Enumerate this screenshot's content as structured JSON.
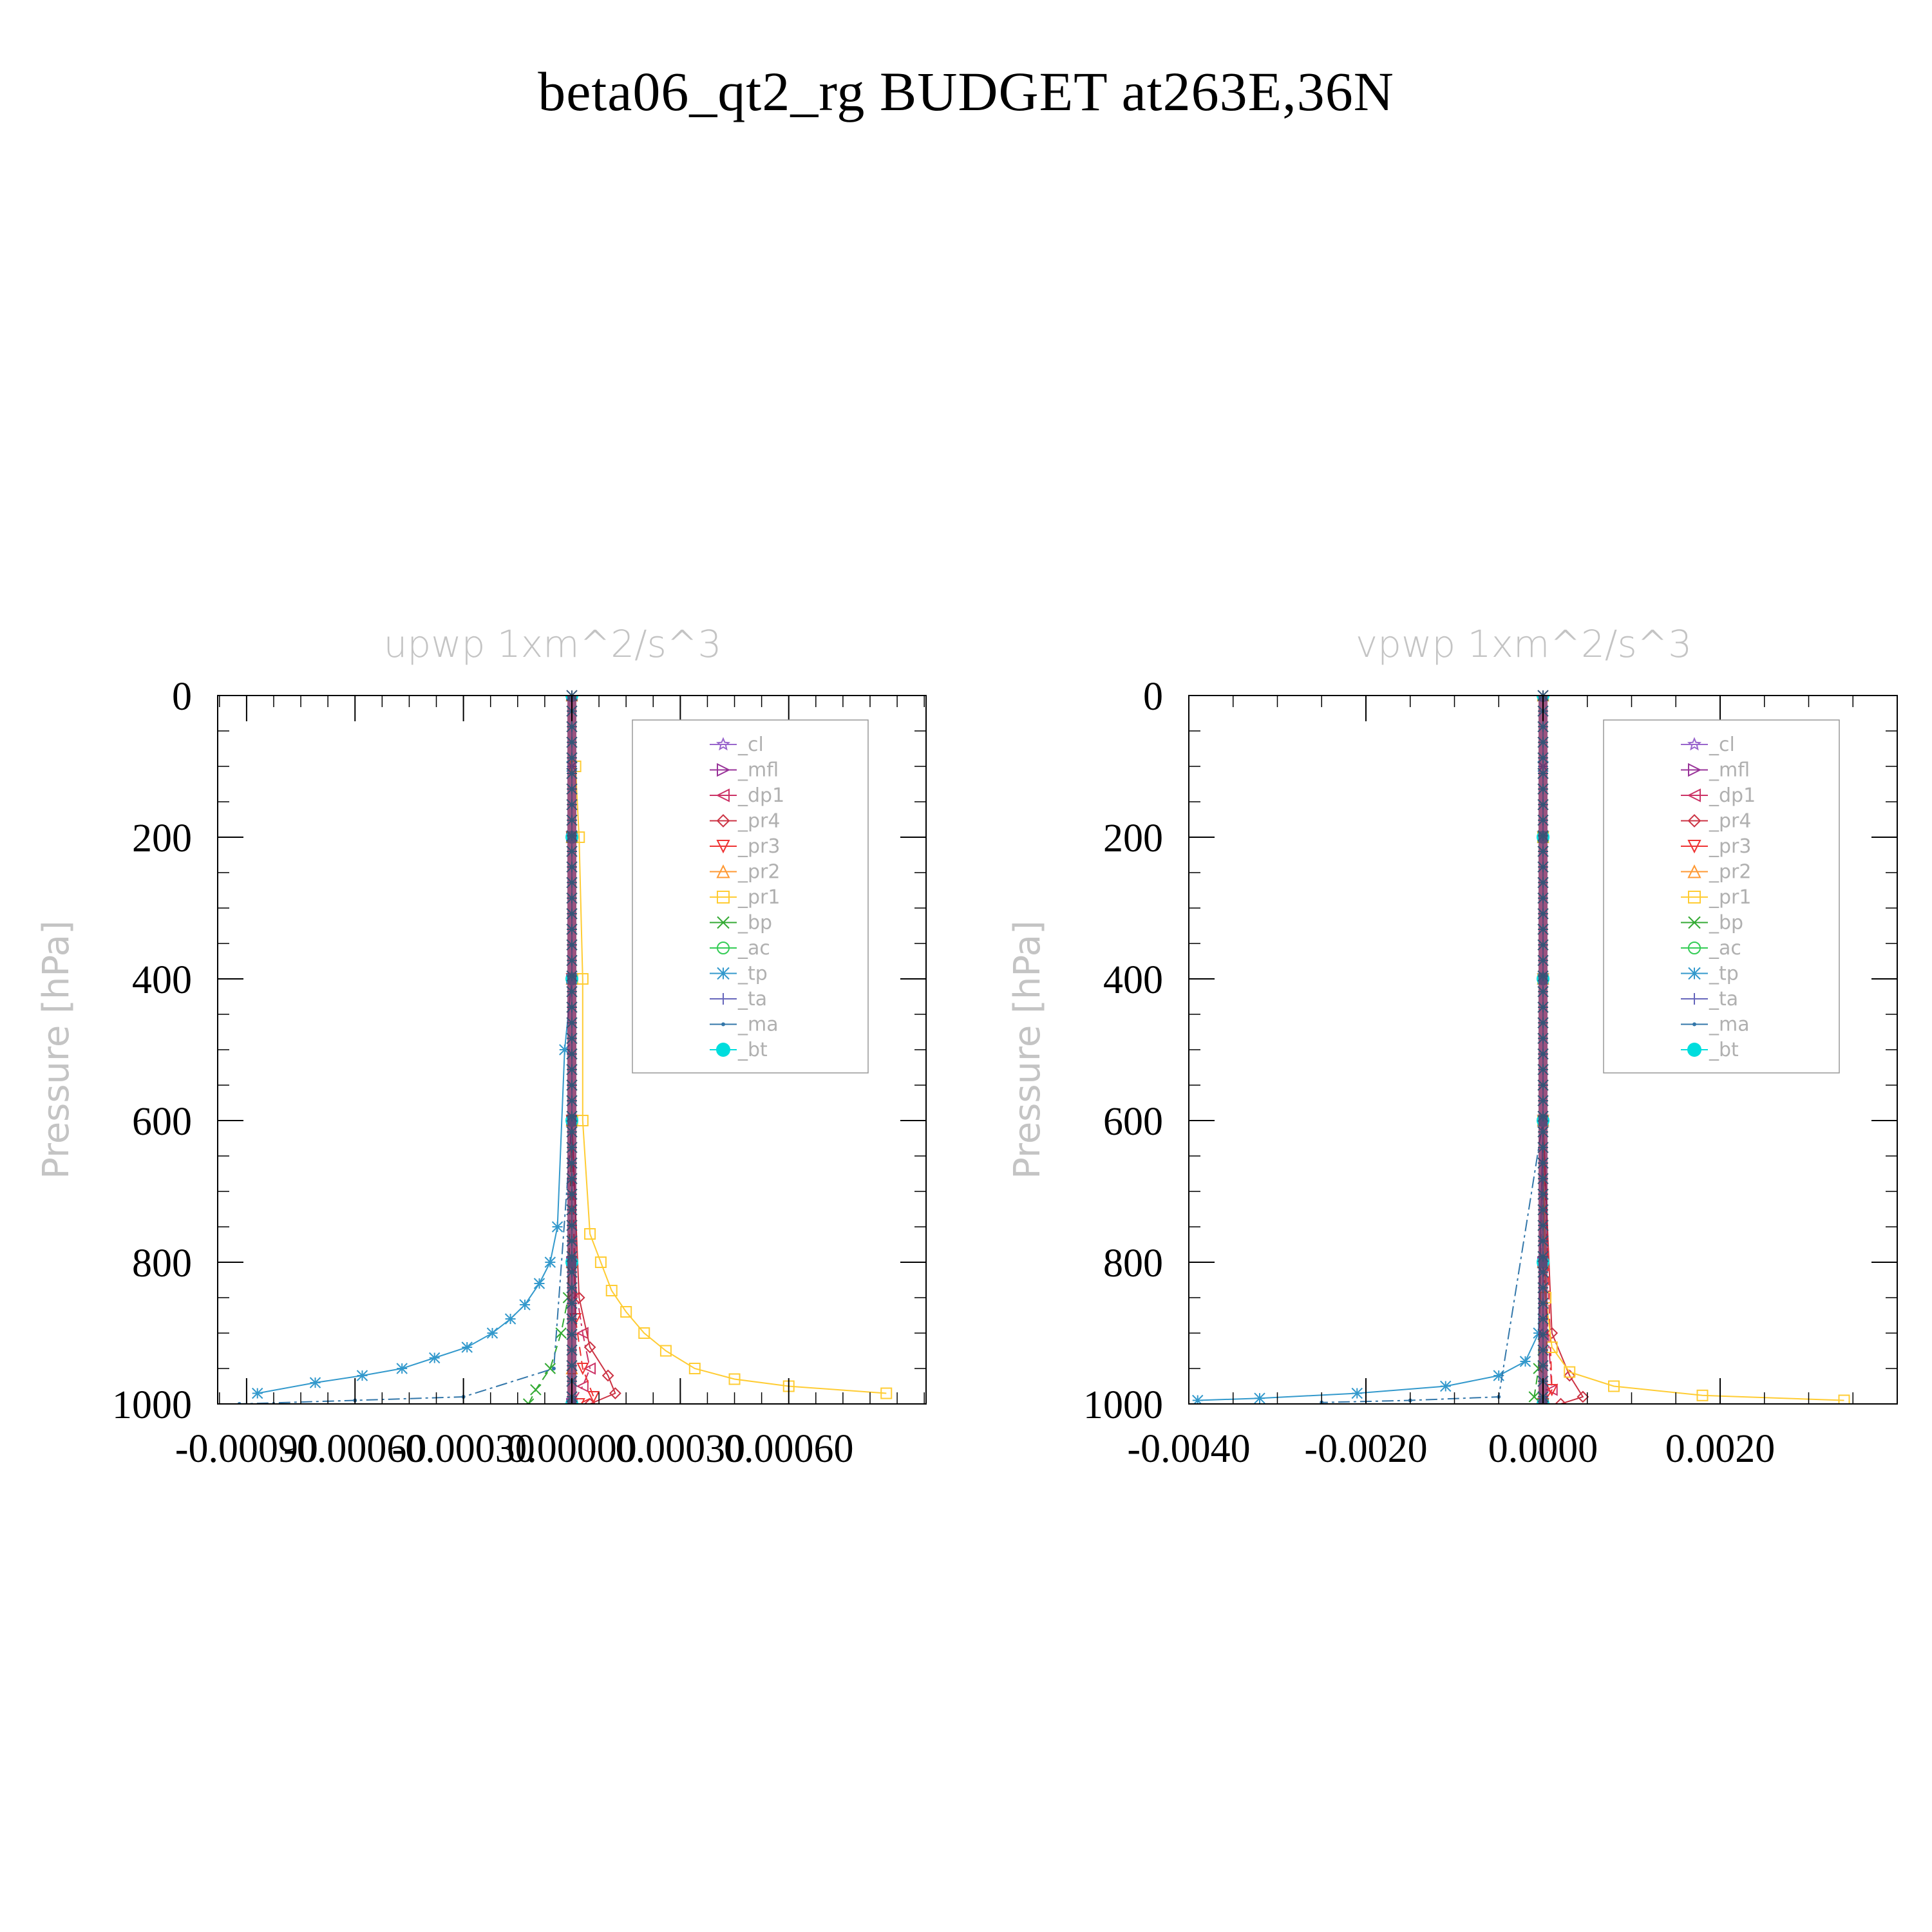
{
  "page": {
    "title": "beta06_qt2_rg  BUDGET at263E,36N"
  },
  "chart_data": [
    {
      "type": "line",
      "title": "upwp    1xm^2/s^3",
      "ylabel": "Pressure  [hPa]",
      "xlabel": "",
      "ylim": [
        1000,
        0
      ],
      "y_reversed": true,
      "xlim": [
        -0.00098,
        0.00098
      ],
      "x_ticks": [
        -0.0009,
        -0.0006,
        -0.0003,
        0.0,
        0.0003,
        0.0006
      ],
      "x_tick_labels": [
        "-0.00090",
        "-0.00060",
        "-0.00030",
        "0.00000",
        "0.00030",
        "0.00060"
      ],
      "y_ticks": [
        0,
        200,
        400,
        600,
        800,
        1000
      ],
      "y_tick_labels": [
        "0",
        "200",
        "400",
        "600",
        "800",
        "1000"
      ],
      "grid": false,
      "legend_position": "top-right",
      "series": [
        {
          "name": "_cl",
          "color": "#9966cc",
          "x": [
            0,
            0,
            0,
            0,
            0,
            0
          ],
          "y": [
            0,
            200,
            400,
            600,
            800,
            1000
          ]
        },
        {
          "name": "_mfl",
          "color": "#993399",
          "x": [
            0,
            0,
            0,
            0,
            0,
            0
          ],
          "y": [
            0,
            200,
            400,
            600,
            800,
            1000
          ]
        },
        {
          "name": "_dp1",
          "color": "#cc3366",
          "x": [
            0,
            0,
            0,
            0,
            0,
            3e-05,
            5e-05,
            3e-05,
            0
          ],
          "y": [
            0,
            200,
            400,
            600,
            800,
            900,
            950,
            975,
            1000
          ]
        },
        {
          "name": "_pr4",
          "color": "#cc3344",
          "x": [
            0,
            0,
            0,
            0,
            2e-05,
            5e-05,
            0.0001,
            0.00012,
            5e-05
          ],
          "y": [
            0,
            200,
            400,
            600,
            850,
            920,
            960,
            985,
            1000
          ]
        },
        {
          "name": "_pr3",
          "color": "#ee3333",
          "x": [
            0,
            0,
            0,
            0,
            1e-05,
            3e-05,
            6e-05,
            2e-05
          ],
          "y": [
            0,
            200,
            400,
            600,
            880,
            950,
            990,
            1000
          ]
        },
        {
          "name": "_pr2",
          "color": "#ff9933",
          "x": [
            0,
            0,
            0,
            0,
            0,
            0,
            0
          ],
          "y": [
            0,
            200,
            400,
            600,
            800,
            950,
            1000
          ]
        },
        {
          "name": "_pr1",
          "color": "#ffcc33",
          "x": [
            1e-05,
            2e-05,
            3e-05,
            3e-05,
            5e-05,
            8e-05,
            0.00011,
            0.00015,
            0.0002,
            0.00026,
            0.00034,
            0.00045,
            0.0006,
            0.00087
          ],
          "y": [
            100,
            200,
            400,
            600,
            760,
            800,
            840,
            870,
            900,
            925,
            950,
            965,
            975,
            985
          ]
        },
        {
          "name": "_bp",
          "color": "#33aa33",
          "x": [
            0,
            0,
            0,
            0,
            -1e-05,
            -3e-05,
            -6e-05,
            -0.0001,
            -0.00012
          ],
          "y": [
            0,
            200,
            400,
            600,
            850,
            900,
            950,
            980,
            1000
          ]
        },
        {
          "name": "_ac",
          "color": "#33cc55",
          "x": [
            0,
            0,
            0,
            0,
            0,
            0
          ],
          "y": [
            0,
            200,
            400,
            600,
            800,
            1000
          ]
        },
        {
          "name": "_tp",
          "color": "#3399cc",
          "x": [
            0,
            0,
            -2e-05,
            -4e-05,
            -6e-05,
            -9e-05,
            -0.00013,
            -0.00017,
            -0.00022,
            -0.00029,
            -0.00038,
            -0.00047,
            -0.00058,
            -0.00071,
            -0.00087
          ],
          "y": [
            100,
            400,
            500,
            750,
            800,
            830,
            860,
            880,
            900,
            920,
            935,
            950,
            960,
            970,
            985
          ]
        },
        {
          "name": "_ta",
          "color": "#6666bb",
          "x": [
            0,
            0,
            0,
            0,
            0,
            0
          ],
          "y": [
            0,
            200,
            400,
            600,
            800,
            1000
          ]
        },
        {
          "name": "_ma",
          "color": "#3377aa",
          "x": [
            0,
            0,
            0,
            0,
            -5e-05,
            -0.0003,
            -0.0006,
            -0.00092
          ],
          "y": [
            0,
            200,
            400,
            600,
            950,
            990,
            995,
            1000
          ]
        },
        {
          "name": "_bt",
          "color": "#00dddd",
          "x": [
            0,
            0,
            0,
            0,
            0,
            0
          ],
          "y": [
            0,
            200,
            400,
            600,
            800,
            1000
          ]
        }
      ]
    },
    {
      "type": "line",
      "title": "vpwp    1xm^2/s^3",
      "ylabel": "Pressure  [hPa]",
      "xlabel": "",
      "ylim": [
        1000,
        0
      ],
      "y_reversed": true,
      "xlim": [
        -0.004,
        0.004
      ],
      "x_ticks": [
        -0.004,
        -0.002,
        0.0,
        0.002
      ],
      "x_tick_labels": [
        "-0.0040",
        "-0.0020",
        "0.0000",
        "0.0020"
      ],
      "y_ticks": [
        0,
        200,
        400,
        600,
        800,
        1000
      ],
      "y_tick_labels": [
        "0",
        "200",
        "400",
        "600",
        "800",
        "1000"
      ],
      "grid": false,
      "legend_position": "top-right",
      "series": [
        {
          "name": "_cl",
          "color": "#9966cc",
          "x": [
            0,
            0,
            0,
            0,
            0,
            0
          ],
          "y": [
            0,
            200,
            400,
            600,
            800,
            1000
          ]
        },
        {
          "name": "_mfl",
          "color": "#993399",
          "x": [
            0,
            0,
            0,
            0,
            0,
            0
          ],
          "y": [
            0,
            200,
            400,
            600,
            800,
            1000
          ]
        },
        {
          "name": "_dp1",
          "color": "#cc3366",
          "x": [
            0,
            0,
            0,
            0,
            0,
            0.0001,
            0
          ],
          "y": [
            0,
            200,
            400,
            600,
            800,
            980,
            1000
          ]
        },
        {
          "name": "_pr4",
          "color": "#cc3344",
          "x": [
            0,
            0,
            0,
            0,
            0.0001,
            0.0003,
            0.00045,
            0.0002
          ],
          "y": [
            0,
            200,
            400,
            600,
            900,
            960,
            990,
            1000
          ]
        },
        {
          "name": "_pr3",
          "color": "#ee3333",
          "x": [
            0,
            0,
            0,
            0,
            0.0001,
            0
          ],
          "y": [
            0,
            200,
            400,
            600,
            980,
            1000
          ]
        },
        {
          "name": "_pr2",
          "color": "#ff9933",
          "x": [
            0,
            0,
            0,
            0,
            0,
            0
          ],
          "y": [
            0,
            200,
            400,
            600,
            800,
            1000
          ]
        },
        {
          "name": "_pr1",
          "color": "#ffcc33",
          "x": [
            0,
            0,
            0,
            0,
            3e-05,
            0.0001,
            0.0003,
            0.0008,
            0.0018,
            0.0034
          ],
          "y": [
            0,
            200,
            400,
            600,
            850,
            920,
            955,
            975,
            988,
            995
          ]
        },
        {
          "name": "_bp",
          "color": "#33aa33",
          "x": [
            0,
            0,
            0,
            0,
            -5e-05,
            -0.0001,
            0
          ],
          "y": [
            0,
            200,
            400,
            600,
            950,
            990,
            1000
          ]
        },
        {
          "name": "_ac",
          "color": "#33cc55",
          "x": [
            0,
            0,
            0,
            0,
            0,
            0
          ],
          "y": [
            0,
            200,
            400,
            600,
            800,
            1000
          ]
        },
        {
          "name": "_tp",
          "color": "#3399cc",
          "x": [
            0,
            0,
            0,
            -5e-05,
            -0.0002,
            -0.0005,
            -0.0011,
            -0.0021,
            -0.0032,
            -0.0039
          ],
          "y": [
            100,
            400,
            600,
            900,
            940,
            960,
            975,
            985,
            992,
            995
          ]
        },
        {
          "name": "_ta",
          "color": "#6666bb",
          "x": [
            0,
            0,
            0,
            0,
            0,
            0
          ],
          "y": [
            0,
            200,
            400,
            600,
            800,
            1000
          ]
        },
        {
          "name": "_ma",
          "color": "#3377aa",
          "x": [
            0,
            0,
            0,
            0,
            -0.0005,
            -0.0015,
            -0.0025
          ],
          "y": [
            0,
            200,
            400,
            600,
            990,
            995,
            998
          ]
        },
        {
          "name": "_bt",
          "color": "#00dddd",
          "x": [
            0,
            0,
            0,
            0,
            0,
            0
          ],
          "y": [
            0,
            200,
            400,
            600,
            800,
            1000
          ]
        }
      ]
    }
  ]
}
